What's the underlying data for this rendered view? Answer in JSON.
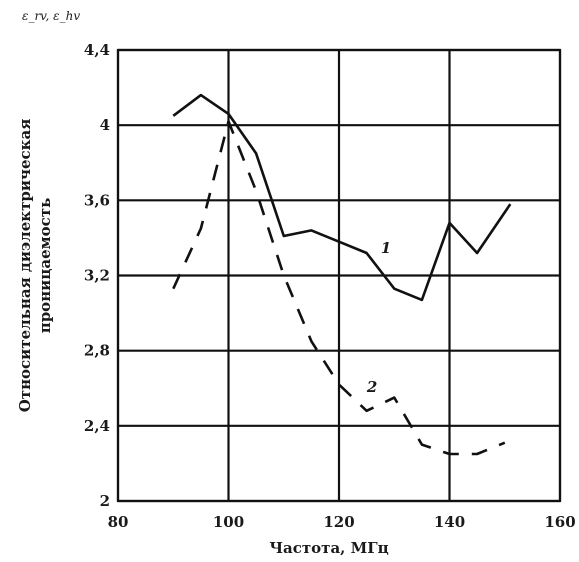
{
  "chart_data": {
    "type": "line",
    "corner_label": "ε_rv, ε_hv",
    "xlabel": "Частота, МГц",
    "ylabel_lines": [
      "Относительная диэлектрическая",
      "проницаемость"
    ],
    "xlim": [
      80,
      160
    ],
    "ylim": [
      2,
      4.4
    ],
    "x_ticks": [
      "80",
      "100",
      "120",
      "140",
      "160"
    ],
    "y_ticks": [
      "2",
      "2,4",
      "2,8",
      "3,2",
      "3,6",
      "4",
      "4,4"
    ],
    "grid": true,
    "series": [
      {
        "name": "1",
        "style": "solid",
        "color": "#111111",
        "x": [
          90,
          95,
          100,
          105,
          110,
          115,
          120,
          125,
          130,
          135,
          140,
          145,
          151
        ],
        "y": [
          4.05,
          4.16,
          4.06,
          3.85,
          3.41,
          3.44,
          3.38,
          3.32,
          3.13,
          3.07,
          3.48,
          3.32,
          3.58
        ]
      },
      {
        "name": "2",
        "style": "dashed",
        "color": "#111111",
        "x": [
          90,
          95,
          100,
          105,
          110,
          115,
          120,
          125,
          130,
          135,
          140,
          145,
          150
        ],
        "y": [
          3.13,
          3.45,
          4.02,
          3.65,
          3.2,
          2.85,
          2.62,
          2.48,
          2.55,
          2.3,
          2.25,
          2.25,
          2.31
        ]
      }
    ]
  }
}
